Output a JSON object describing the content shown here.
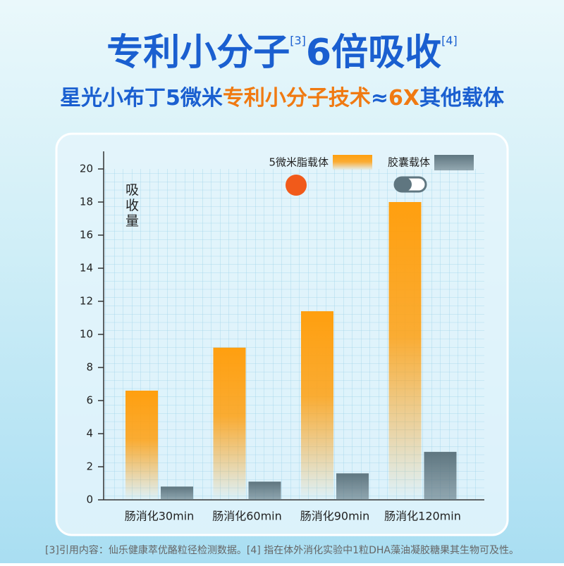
{
  "chart_data": {
    "type": "bar",
    "title": {
      "text1": "专利小分子",
      "ref1": "[3]",
      "text2": "6倍吸收",
      "ref2": "[4]"
    },
    "subtitle": [
      {
        "text": "星光小布丁5微米",
        "color": "#1a5fd0"
      },
      {
        "text": "专利小分子技术",
        "color": "#f07a12"
      },
      {
        "text": "≈",
        "color": "#1a5fd0"
      },
      {
        "text": "6X",
        "color": "#f07a12"
      },
      {
        "text": "其他载体",
        "color": "#1a5fd0"
      }
    ],
    "y_label": "吸收量",
    "categories": [
      "肠消化30min",
      "肠消化60min",
      "肠消化90min",
      "肠消化120min"
    ],
    "series": [
      {
        "name": "5微米脂载体",
        "color": "#ff9f0f",
        "values": [
          6.6,
          9.2,
          11.4,
          18.0
        ]
      },
      {
        "name": "胶囊载体",
        "color": "#5f7680",
        "values": [
          0.8,
          1.1,
          1.6,
          2.9
        ]
      }
    ],
    "ylim": [
      0,
      20
    ],
    "yticks": [
      0,
      2,
      4,
      6,
      8,
      10,
      12,
      14,
      16,
      18,
      20
    ],
    "footnote": "[3]引用内容：仙乐健康萃优酪粒径检测数据。[4] 指在体外消化实验中1粒DHA藻油凝胶糖果其生物可及性。"
  }
}
